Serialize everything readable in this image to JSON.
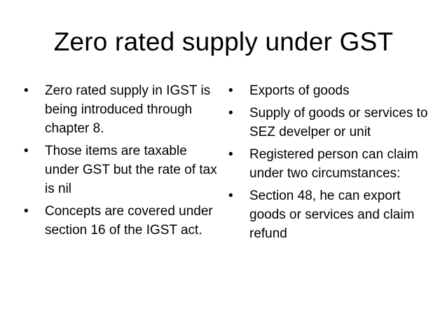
{
  "slide": {
    "title": "Zero rated supply under GST",
    "bullet_glyph": "•",
    "left_column": [
      "Zero rated supply in IGST is being introduced through chapter 8.",
      "Those items are taxable under GST but the rate of tax is nil",
      "Concepts are covered under section 16 of the IGST act."
    ],
    "right_column": [
      "Exports of goods",
      "Supply of goods or services to SEZ develper or unit",
      "Registered person can claim under two circumstances:",
      "Section 48, he can export goods or services and claim refund"
    ]
  }
}
